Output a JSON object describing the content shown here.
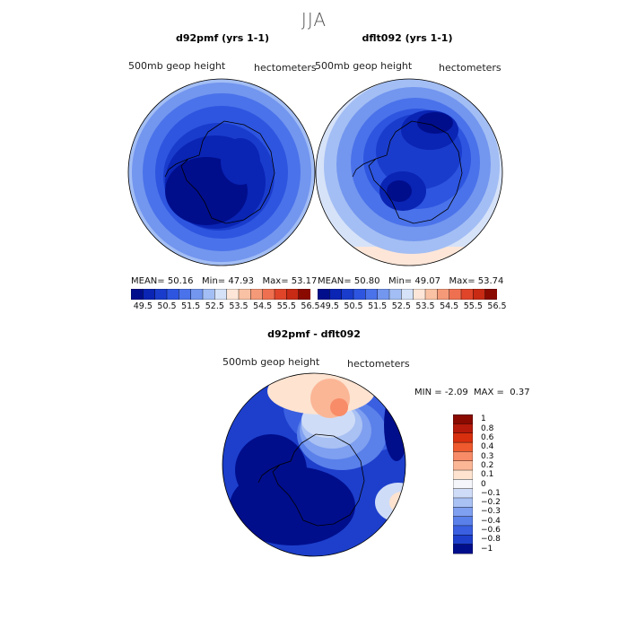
{
  "title": "JJA",
  "panels": [
    {
      "title": "d92pmf (yrs 1-1)",
      "variable": "500mb geop height",
      "units": "hectometers",
      "stats": {
        "mean_label": "MEAN=",
        "mean": "50.16",
        "min_label": "Min=",
        "min": "47.93",
        "max_label": "Max=",
        "max": "53.17"
      },
      "colorbar_labels": [
        "49.5",
        "50.5",
        "51.5",
        "52.5",
        "53.5",
        "54.5",
        "55.5",
        "56.5"
      ]
    },
    {
      "title": "dflt092 (yrs 1-1)",
      "variable": "500mb geop height",
      "units": "hectometers",
      "stats": {
        "mean_label": "MEAN=",
        "mean": "50.80",
        "min_label": "Min=",
        "min": "49.07",
        "max_label": "Max=",
        "max": "53.74"
      },
      "colorbar_labels": [
        "49.5",
        "50.5",
        "51.5",
        "52.5",
        "53.5",
        "54.5",
        "55.5",
        "56.5"
      ]
    }
  ],
  "diff": {
    "title": "d92pmf - dflt092",
    "variable": "500mb geop height",
    "units": "hectometers",
    "min_label": "MIN =",
    "min": "-2.09",
    "max_label": "MAX =",
    "max": "0.37",
    "colorbar_labels": [
      "1",
      "0.8",
      "0.6",
      "0.4",
      "0.3",
      "0.2",
      "0.1",
      "0",
      "−0.1",
      "−0.2",
      "−0.3",
      "−0.4",
      "−0.6",
      "−0.8",
      "−1"
    ]
  },
  "colors": {
    "abs_scale": [
      "#000e8c",
      "#0a24b4",
      "#1a3ccc",
      "#2d55e0",
      "#4a72ea",
      "#7396ef",
      "#a3bef4",
      "#d6e2f8",
      "#fde6d8",
      "#f9c2a4",
      "#f59a78",
      "#ef7050",
      "#e0452a",
      "#c82a14",
      "#8a0a00"
    ],
    "diff_scale": [
      "#8a0a00",
      "#b51a0a",
      "#d8300f",
      "#ef5a2e",
      "#f88c68",
      "#fbb696",
      "#fde3d0",
      "#f4f6fa",
      "#cfdcf7",
      "#a9c1f3",
      "#7f9ff0",
      "#5a80ea",
      "#3a5fe0",
      "#1d3fcc",
      "#000e8c"
    ]
  }
}
